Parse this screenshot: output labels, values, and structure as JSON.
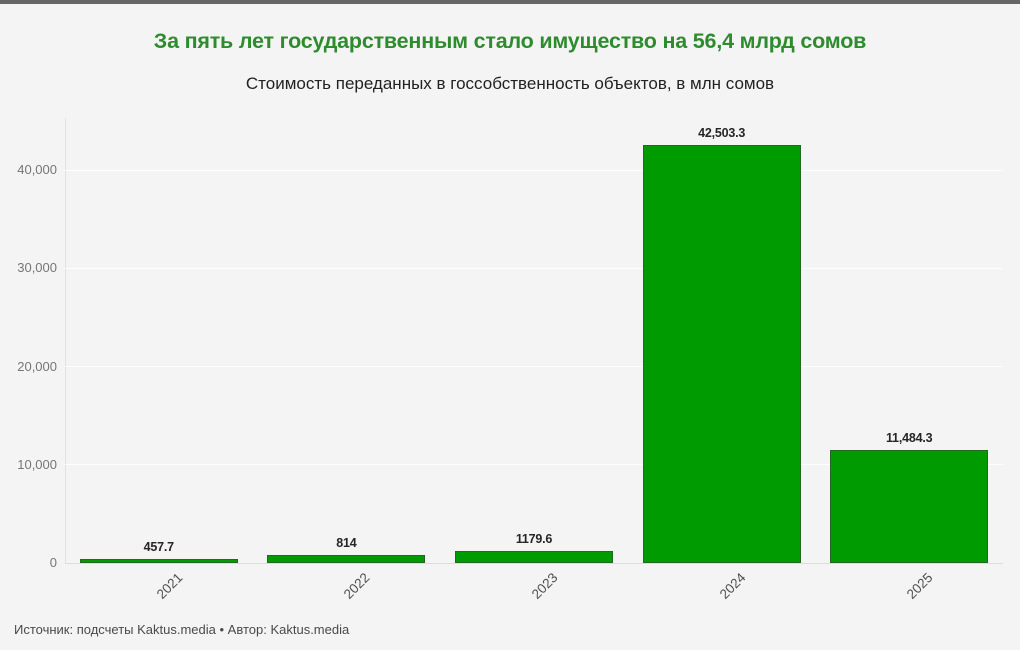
{
  "page": {
    "background_color": "#f4f4f4",
    "top_strip_color": "#666666"
  },
  "header": {
    "title": "За пять лет государственным стало имущество на 56,4 млрд сомов",
    "title_color": "#2e8b2e",
    "subtitle": "Стоимость переданных в госсобственность объектов, в млн сомов"
  },
  "chart_data": {
    "type": "bar",
    "title": "За пять лет государственным стало имущество на 56,4 млрд сомов",
    "subtitle": "Стоимость переданных в госсобственность объектов, в млн сомов",
    "categories": [
      "2021",
      "2022",
      "2023",
      "2024",
      "2025"
    ],
    "values": [
      457.7,
      814,
      1179.6,
      42503.3,
      11484.3
    ],
    "value_labels": [
      "457.7",
      "814",
      "1179.6",
      "42,503.3",
      "11,484.3"
    ],
    "xlabel": "",
    "ylabel": "",
    "ylim": [
      0,
      45600
    ],
    "yticks": [
      0,
      10000,
      20000,
      30000,
      40000
    ],
    "ytick_labels": [
      "0",
      "10,000",
      "20,000",
      "30,000",
      "40,000"
    ],
    "x_tick_rotation_deg": -45,
    "grid": true,
    "legend": false,
    "bar_color": "#009b00",
    "bar_border_color": "#226822"
  },
  "footer": {
    "source_text": "Источник: подсчеты Kaktus.media • Автор: Kaktus.media"
  }
}
